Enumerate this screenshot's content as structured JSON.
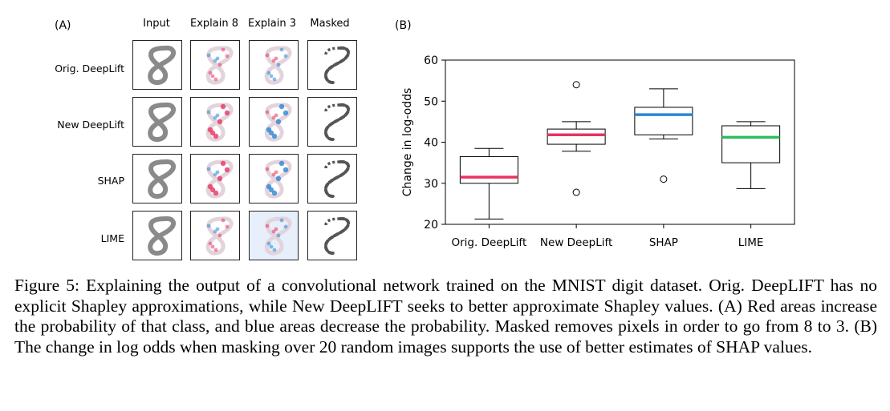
{
  "panel_a_label": "(A)",
  "panel_b_label": "(B)",
  "grid": {
    "columns": [
      "Input",
      "Explain 8",
      "Explain 3",
      "Masked"
    ],
    "rows": [
      "Orig. DeepLift",
      "New DeepLift",
      "SHAP",
      "LIME"
    ]
  },
  "colors": {
    "red": "#e8335f",
    "blue": "#2a86d6",
    "green": "#2dbf5a",
    "gray": "#777777"
  },
  "chart_data": {
    "type": "box",
    "title": "",
    "xlabel": "",
    "ylabel": "Change in log-odds",
    "ylim": [
      20,
      60
    ],
    "yticks": [
      20,
      30,
      40,
      50,
      60
    ],
    "categories": [
      "Orig. DeepLift",
      "New DeepLift",
      "SHAP",
      "LIME"
    ],
    "boxes": [
      {
        "name": "Orig. DeepLift",
        "whisker_low": 21.3,
        "q1": 30.0,
        "median": 31.5,
        "q3": 36.5,
        "whisker_high": 38.5,
        "outliers": [],
        "median_color": "#e8335f"
      },
      {
        "name": "New DeepLift",
        "whisker_low": 37.8,
        "q1": 39.5,
        "median": 41.8,
        "q3": 43.2,
        "whisker_high": 45.0,
        "outliers": [
          27.8,
          54.0
        ],
        "median_color": "#e8335f"
      },
      {
        "name": "SHAP",
        "whisker_low": 40.8,
        "q1": 41.8,
        "median": 46.7,
        "q3": 48.5,
        "whisker_high": 53.0,
        "outliers": [
          31.0
        ],
        "median_color": "#2a86d6"
      },
      {
        "name": "LIME",
        "whisker_low": 28.7,
        "q1": 35.0,
        "median": 41.2,
        "q3": 44.0,
        "whisker_high": 45.0,
        "outliers": [],
        "median_color": "#2dbf5a"
      }
    ]
  },
  "caption": "Figure 5: Explaining the output of a convolutional network trained on the MNIST digit dataset. Orig. DeepLIFT has no explicit Shapley approximations, while New DeepLIFT seeks to better approximate Shapley values. (A) Red areas increase the probability of that class, and blue areas decrease the probability. Masked removes pixels in order to go from 8 to 3. (B) The change in log odds when masking over 20 random images supports the use of better estimates of SHAP values."
}
